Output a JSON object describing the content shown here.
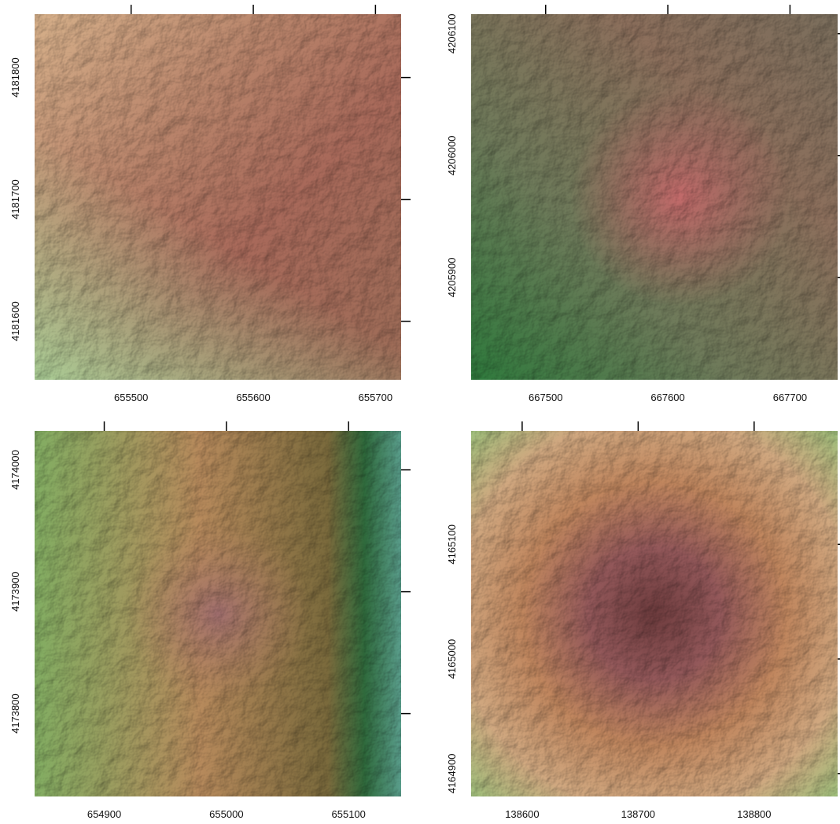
{
  "panels": [
    {
      "xlim": [
        655421,
        655721
      ],
      "ylim": [
        4181552,
        4181852
      ],
      "xticks": [
        655500,
        655600,
        655700
      ],
      "yticks": [
        4181600,
        4181700,
        4181800
      ]
    },
    {
      "xlim": [
        667439,
        667739
      ],
      "ylim": [
        4205816,
        4206116
      ],
      "xticks": [
        667500,
        667600,
        667700
      ],
      "yticks": [
        4205900,
        4206000,
        4206100
      ]
    },
    {
      "xlim": [
        654843,
        655143
      ],
      "ylim": [
        4173732,
        4174032
      ],
      "xticks": [
        654900,
        655000,
        655100
      ],
      "yticks": [
        4173800,
        4173900,
        4174000
      ]
    },
    {
      "xlim": [
        138556,
        138872
      ],
      "ylim": [
        4164880,
        4165199
      ],
      "xticks": [
        138600,
        138700,
        138800
      ],
      "yticks": [
        4164900,
        4165000,
        4165100
      ]
    }
  ]
}
